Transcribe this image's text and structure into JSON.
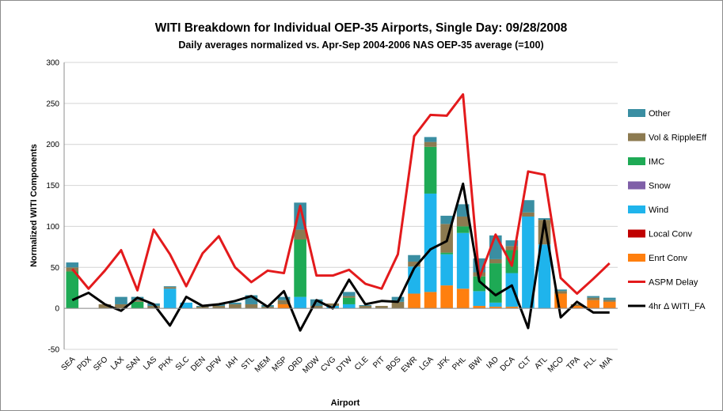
{
  "chart_data": {
    "type": "bar",
    "title": "WITI Breakdown for Individual OEP-35 Airports, Single Day: 09/28/2008",
    "subtitle": "Daily averages normalized vs. Apr-Sep 2004-2006 NAS OEP-35 average (=100)",
    "xlabel": "Airport",
    "ylabel": "Normalized WITI Components",
    "ylim": [
      -50,
      300
    ],
    "yticks": [
      -50,
      0,
      50,
      100,
      150,
      200,
      250,
      300
    ],
    "grid": true,
    "legend_position": "right",
    "categories": [
      "SEA",
      "PDX",
      "SFO",
      "LAX",
      "SAN",
      "LAS",
      "PHX",
      "SLC",
      "DEN",
      "DFW",
      "IAH",
      "STL",
      "MEM",
      "MSP",
      "ORD",
      "MDW",
      "CVG",
      "DTW",
      "CLE",
      "PIT",
      "BOS",
      "EWR",
      "LGA",
      "JFK",
      "PHL",
      "BWI",
      "IAD",
      "DCA",
      "CLT",
      "ATL",
      "MCO",
      "TPA",
      "FLL",
      "MIA"
    ],
    "stacked_series": [
      {
        "name": "Enrt Conv",
        "color": "#ff7f0e",
        "values": [
          0,
          0,
          0,
          0,
          0,
          0,
          0,
          0,
          0,
          0,
          0,
          0,
          0,
          5,
          0,
          0,
          0,
          0,
          0,
          0,
          0,
          18,
          20,
          28,
          24,
          3,
          2,
          2,
          0,
          0,
          18,
          3,
          10,
          8
        ]
      },
      {
        "name": "Local Conv",
        "color": "#c00000",
        "values": [
          0,
          0,
          0,
          0,
          0,
          0,
          0,
          0,
          0,
          0,
          0,
          0,
          0,
          0,
          0,
          0,
          0,
          0,
          0,
          0,
          0,
          0,
          0,
          0,
          0,
          0,
          0,
          0,
          0,
          0,
          0,
          0,
          0,
          0
        ]
      },
      {
        "name": "Wind",
        "color": "#1fb4ec",
        "values": [
          0,
          0,
          0,
          0,
          0,
          0,
          24,
          7,
          0,
          0,
          0,
          0,
          0,
          0,
          14,
          0,
          3,
          5,
          0,
          0,
          0,
          33,
          120,
          38,
          68,
          18,
          5,
          41,
          112,
          78,
          0,
          0,
          0,
          0
        ]
      },
      {
        "name": "Snow",
        "color": "#7f5fa8",
        "values": [
          0,
          0,
          0,
          0,
          0,
          0,
          0,
          0,
          0,
          0,
          0,
          0,
          0,
          0,
          0,
          0,
          0,
          0,
          0,
          0,
          0,
          0,
          0,
          0,
          0,
          0,
          0,
          0,
          0,
          0,
          0,
          0,
          0,
          0
        ]
      },
      {
        "name": "IMC",
        "color": "#1eaa55",
        "values": [
          45,
          0,
          0,
          0,
          8,
          0,
          0,
          0,
          0,
          0,
          0,
          0,
          0,
          0,
          70,
          0,
          0,
          8,
          0,
          0,
          0,
          0,
          57,
          2,
          8,
          18,
          48,
          28,
          0,
          0,
          0,
          0,
          0,
          0
        ]
      },
      {
        "name": "Vol & RippleEff",
        "color": "#8c7a50",
        "values": [
          5,
          0,
          5,
          5,
          2,
          3,
          2,
          0,
          2,
          3,
          5,
          5,
          2,
          5,
          12,
          3,
          3,
          2,
          3,
          3,
          8,
          6,
          6,
          35,
          12,
          5,
          5,
          5,
          5,
          30,
          3,
          2,
          3,
          2
        ]
      },
      {
        "name": "Other",
        "color": "#3a8ea2",
        "values": [
          6,
          0,
          0,
          9,
          4,
          3,
          1,
          0,
          1,
          2,
          2,
          11,
          2,
          4,
          33,
          8,
          0,
          5,
          1,
          0,
          6,
          8,
          6,
          10,
          15,
          17,
          29,
          7,
          15,
          2,
          2,
          0,
          2,
          3
        ]
      }
    ],
    "line_series": [
      {
        "name": "ASPM Delay",
        "color": "#e31a1c",
        "values": [
          48,
          24,
          46,
          71,
          22,
          96,
          66,
          27,
          67,
          88,
          50,
          32,
          46,
          43,
          125,
          40,
          40,
          47,
          30,
          24,
          66,
          210,
          236,
          235,
          261,
          37,
          90,
          52,
          167,
          163,
          37,
          18,
          36,
          55
        ]
      },
      {
        "name": "4hr Δ WITI_FA",
        "color": "#000000",
        "values": [
          10,
          19,
          5,
          -3,
          13,
          5,
          -21,
          14,
          3,
          5,
          9,
          15,
          2,
          21,
          -27,
          10,
          0,
          35,
          5,
          9,
          8,
          49,
          72,
          82,
          152,
          33,
          16,
          28,
          -24,
          107,
          -11,
          8,
          -5,
          -5
        ]
      }
    ],
    "legend_order": [
      "Other",
      "Vol & RippleEff",
      "IMC",
      "Snow",
      "Wind",
      "Local Conv",
      "Enrt Conv",
      "ASPM Delay",
      "4hr Δ WITI_FA"
    ]
  }
}
